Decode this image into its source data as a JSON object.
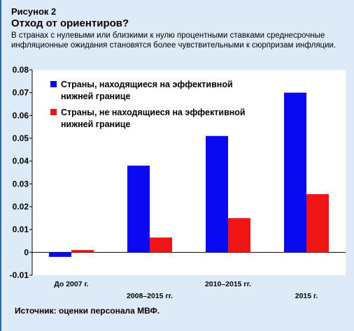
{
  "figure": {
    "label": "Рисунок 2",
    "title": "Отход от ориентиров?",
    "subtitle": "В странах с нулевыми или близкими к нулю процентными ставками среднесрочные инфляционные ожидания становятся более чувствительными к сюрпризам инфляции.",
    "source": "Источник: оценки персонала МВФ."
  },
  "chart_data": {
    "type": "bar",
    "title": "",
    "xlabel": "",
    "ylabel": "",
    "categories": [
      "До 2007 г.",
      "2008–2015 гг.",
      "2010–2015 гг.",
      "2015 г."
    ],
    "series": [
      {
        "name": "Страны, находящиеся на эффективной нижней границе",
        "color": "#0a0af0",
        "values": [
          -0.002,
          0.038,
          0.051,
          0.07
        ]
      },
      {
        "name": "Страны, не находящиеся на эффективной нижней границе",
        "color": "#f01414",
        "values": [
          0.001,
          0.0065,
          0.015,
          0.0255
        ]
      }
    ],
    "ylim": [
      -0.01,
      0.08
    ],
    "yticks": [
      "-0.01",
      "0",
      "0.01",
      "0.02",
      "0.03",
      "0.04",
      "0.05",
      "0.06",
      "0.07",
      "0.08"
    ],
    "ytick_values": [
      -0.01,
      0,
      0.01,
      0.02,
      0.03,
      0.04,
      0.05,
      0.06,
      0.07,
      0.08
    ],
    "legend_position": "top-left",
    "grid": false
  }
}
